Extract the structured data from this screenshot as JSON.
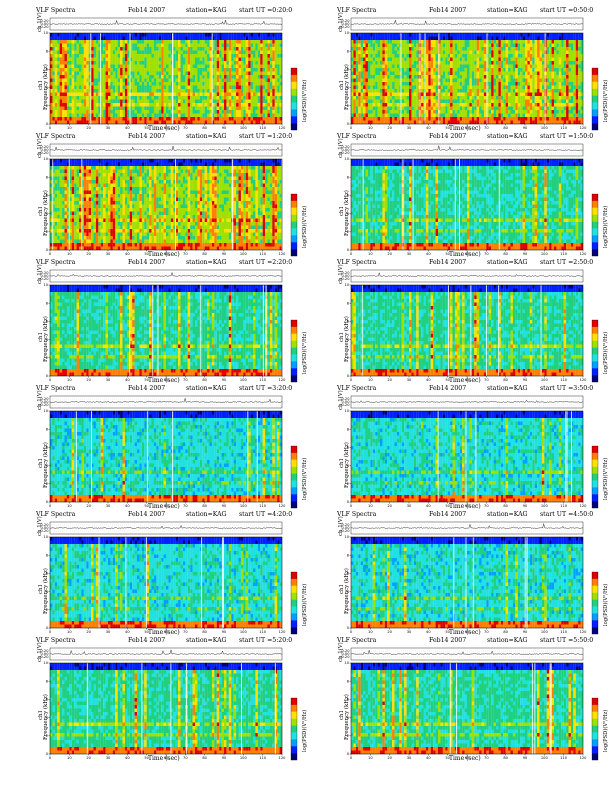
{
  "page": {
    "header_left": "VLF Spectra",
    "date": "Feb14 2007",
    "station": "station=KAG",
    "start_prefix": "start  UT  ="
  },
  "axes": {
    "wave_label": "ch 1(V)",
    "freq_label": "Frequency  (kHz)",
    "freq_channel": "ch1",
    "x_label": "Time  (sec)",
    "colorbar_label": "log(PSD)(V²/Hz)",
    "wave_ticks": [
      "0.20",
      "0.00",
      "-0.20"
    ],
    "freq_ticks": [
      "0",
      "2",
      "4",
      "6",
      "8",
      "10"
    ],
    "time_ticks": [
      "0",
      "10",
      "20",
      "30",
      "40",
      "50",
      "60",
      "70",
      "80",
      "90",
      "100",
      "110",
      "120"
    ]
  },
  "chart_data": [
    {
      "type": "heatmap",
      "title": "VLF Spectra  Feb14 2007  station=KAG  start UT =0:20:0",
      "start_ut": "0:20:0",
      "xlabel": "Time (sec)",
      "ylabel": "Frequency (kHz)",
      "xlim": [
        0,
        120
      ],
      "ylim": [
        0,
        10
      ],
      "activity": "high"
    },
    {
      "type": "heatmap",
      "title": "VLF Spectra  Feb14 2007  station=KAG  start UT =0:50:0",
      "start_ut": "0:50:0",
      "xlabel": "Time (sec)",
      "ylabel": "Frequency (kHz)",
      "xlim": [
        0,
        120
      ],
      "ylim": [
        0,
        10
      ],
      "activity": "high"
    },
    {
      "type": "heatmap",
      "title": "VLF Spectra  Feb14 2007  station=KAG  start UT =1:20:0",
      "start_ut": "1:20:0",
      "xlabel": "Time (sec)",
      "ylabel": "Frequency (kHz)",
      "xlim": [
        0,
        120
      ],
      "ylim": [
        0,
        10
      ],
      "activity": "high"
    },
    {
      "type": "heatmap",
      "title": "VLF Spectra  Feb14 2007  station=KAG  start UT =1:50:0",
      "start_ut": "1:50:0",
      "xlabel": "Time (sec)",
      "ylabel": "Frequency (kHz)",
      "xlim": [
        0,
        120
      ],
      "ylim": [
        0,
        10
      ],
      "activity": "medium"
    },
    {
      "type": "heatmap",
      "title": "VLF Spectra  Feb14 2007  station=KAG  start UT =2:20:0",
      "start_ut": "2:20:0",
      "xlabel": "Time (sec)",
      "ylabel": "Frequency (kHz)",
      "xlim": [
        0,
        120
      ],
      "ylim": [
        0,
        10
      ],
      "activity": "medium"
    },
    {
      "type": "heatmap",
      "title": "VLF Spectra  Feb14 2007  station=KAG  start UT =2:50:0",
      "start_ut": "2:50:0",
      "xlabel": "Time (sec)",
      "ylabel": "Frequency (kHz)",
      "xlim": [
        0,
        120
      ],
      "ylim": [
        0,
        10
      ],
      "activity": "medium"
    },
    {
      "type": "heatmap",
      "title": "VLF Spectra  Feb14 2007  station=KAG  start UT =3:20:0",
      "start_ut": "3:20:0",
      "xlabel": "Time (sec)",
      "ylabel": "Frequency (kHz)",
      "xlim": [
        0,
        120
      ],
      "ylim": [
        0,
        10
      ],
      "activity": "low"
    },
    {
      "type": "heatmap",
      "title": "VLF Spectra  Feb14 2007  station=KAG  start UT =3:50:0",
      "start_ut": "3:50:0",
      "xlabel": "Time (sec)",
      "ylabel": "Frequency (kHz)",
      "xlim": [
        0,
        120
      ],
      "ylim": [
        0,
        10
      ],
      "activity": "low"
    },
    {
      "type": "heatmap",
      "title": "VLF Spectra  Feb14 2007  station=KAG  start UT =4:20:0",
      "start_ut": "4:20:0",
      "xlabel": "Time (sec)",
      "ylabel": "Frequency (kHz)",
      "xlim": [
        0,
        120
      ],
      "ylim": [
        0,
        10
      ],
      "activity": "low"
    },
    {
      "type": "heatmap",
      "title": "VLF Spectra  Feb14 2007  station=KAG  start UT =4:50:0",
      "start_ut": "4:50:0",
      "xlabel": "Time (sec)",
      "ylabel": "Frequency (kHz)",
      "xlim": [
        0,
        120
      ],
      "ylim": [
        0,
        10
      ],
      "activity": "low"
    },
    {
      "type": "heatmap",
      "title": "VLF Spectra  Feb14 2007  station=KAG  start UT =5:20:0",
      "start_ut": "5:20:0",
      "xlabel": "Time (sec)",
      "ylabel": "Frequency (kHz)",
      "xlim": [
        0,
        120
      ],
      "ylim": [
        0,
        10
      ],
      "activity": "medium"
    },
    {
      "type": "heatmap",
      "title": "VLF Spectra  Feb14 2007  station=KAG  start UT =5:50:0",
      "start_ut": "5:50:0",
      "xlabel": "Time (sec)",
      "ylabel": "Frequency (kHz)",
      "xlim": [
        0,
        120
      ],
      "ylim": [
        0,
        10
      ],
      "activity": "medium"
    }
  ],
  "colors": {
    "scale": [
      "#00007a",
      "#0020ff",
      "#00a0ff",
      "#20e0e0",
      "#20d080",
      "#a0e000",
      "#ffe000",
      "#ff8000",
      "#e00000"
    ],
    "ink": "#000000"
  }
}
